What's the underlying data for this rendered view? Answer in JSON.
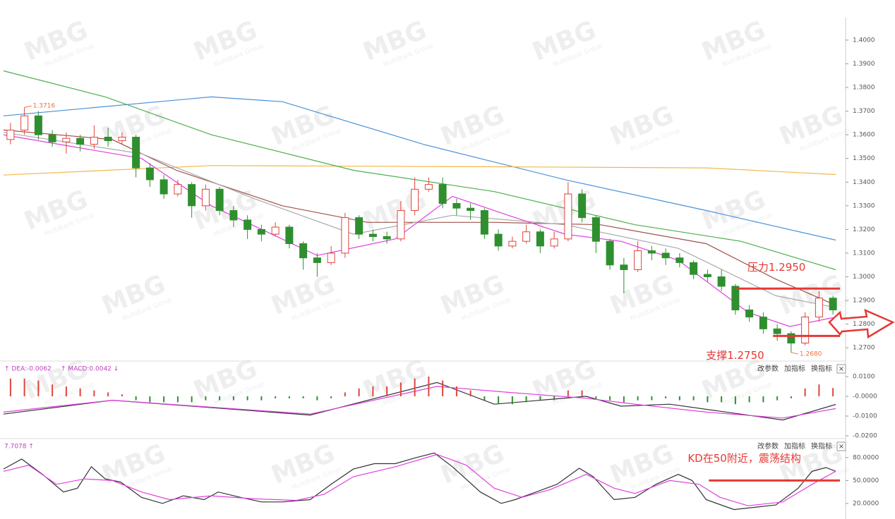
{
  "watermark": "MBG",
  "watermark_sub": "MultiBank Group",
  "toolbar": [
    "改参数",
    "加指标",
    "换指标",
    "×"
  ],
  "chart_data": [
    {
      "type": "candlestick",
      "xlim": [
        -0.5,
        59.5
      ],
      "ylim": [
        1.265,
        1.4095
      ],
      "yticks": [
        {
          "value": 1.4,
          "label": "1.4000"
        },
        {
          "value": 1.39,
          "label": "1.3900"
        },
        {
          "value": 1.38,
          "label": "1.3800"
        },
        {
          "value": 1.37,
          "label": "1.3700"
        },
        {
          "value": 1.36,
          "label": "1.3600"
        },
        {
          "value": 1.35,
          "label": "1.3500"
        },
        {
          "value": 1.34,
          "label": "1.3400"
        },
        {
          "value": 1.33,
          "label": "1.3300"
        },
        {
          "value": 1.32,
          "label": "1.3200"
        },
        {
          "value": 1.31,
          "label": "1.3100"
        },
        {
          "value": 1.3,
          "label": "1.3000"
        },
        {
          "value": 1.29,
          "label": "1.2900"
        },
        {
          "value": 1.28,
          "label": "1.2800"
        },
        {
          "value": 1.27,
          "label": "1.2700"
        }
      ],
      "up_color": "#e0443c",
      "down_color": "#2f8f2f",
      "open": [
        1.358,
        1.362,
        1.368,
        1.36,
        1.357,
        1.3585,
        1.356,
        1.359,
        1.3575,
        1.359,
        1.346,
        1.341,
        1.335,
        1.339,
        1.33,
        1.337,
        1.328,
        1.324,
        1.32,
        1.318,
        1.321,
        1.314,
        1.308,
        1.306,
        1.31,
        1.325,
        1.318,
        1.317,
        1.316,
        1.328,
        1.337,
        1.339,
        1.331,
        1.329,
        1.328,
        1.318,
        1.313,
        1.315,
        1.319,
        1.313,
        1.316,
        1.335,
        1.325,
        1.315,
        1.305,
        1.303,
        1.311,
        1.31,
        1.308,
        1.306,
        1.301,
        1.3,
        1.296,
        1.286,
        1.283,
        1.278,
        1.276,
        1.272,
        1.283,
        1.291
      ],
      "high": [
        1.365,
        1.3716,
        1.37,
        1.362,
        1.361,
        1.36,
        1.364,
        1.363,
        1.361,
        1.36,
        1.348,
        1.343,
        1.341,
        1.34,
        1.339,
        1.338,
        1.33,
        1.326,
        1.322,
        1.323,
        1.322,
        1.315,
        1.31,
        1.313,
        1.327,
        1.326,
        1.32,
        1.319,
        1.332,
        1.342,
        1.342,
        1.342,
        1.333,
        1.331,
        1.329,
        1.32,
        1.317,
        1.322,
        1.32,
        1.319,
        1.34,
        1.337,
        1.326,
        1.316,
        1.308,
        1.315,
        1.313,
        1.312,
        1.31,
        1.307,
        1.303,
        1.303,
        1.297,
        1.288,
        1.285,
        1.28,
        1.277,
        1.285,
        1.294,
        1.292
      ],
      "low": [
        1.356,
        1.36,
        1.358,
        1.355,
        1.352,
        1.353,
        1.354,
        1.355,
        1.356,
        1.342,
        1.338,
        1.333,
        1.334,
        1.325,
        1.328,
        1.326,
        1.321,
        1.316,
        1.315,
        1.317,
        1.312,
        1.303,
        1.3,
        1.305,
        1.308,
        1.316,
        1.315,
        1.314,
        1.315,
        1.326,
        1.336,
        1.329,
        1.326,
        1.324,
        1.316,
        1.311,
        1.312,
        1.314,
        1.31,
        1.312,
        1.315,
        1.323,
        1.31,
        1.303,
        1.293,
        1.302,
        1.307,
        1.305,
        1.304,
        1.299,
        1.298,
        1.294,
        1.284,
        1.281,
        1.276,
        1.273,
        1.268,
        1.271,
        1.281,
        1.284
      ],
      "close": [
        1.362,
        1.368,
        1.36,
        1.357,
        1.3585,
        1.356,
        1.359,
        1.3575,
        1.359,
        1.346,
        1.341,
        1.335,
        1.339,
        1.33,
        1.337,
        1.328,
        1.324,
        1.32,
        1.318,
        1.321,
        1.314,
        1.308,
        1.306,
        1.31,
        1.325,
        1.318,
        1.317,
        1.316,
        1.328,
        1.337,
        1.339,
        1.331,
        1.329,
        1.328,
        1.318,
        1.313,
        1.315,
        1.319,
        1.313,
        1.316,
        1.335,
        1.325,
        1.315,
        1.305,
        1.303,
        1.311,
        1.31,
        1.308,
        1.306,
        1.301,
        1.3,
        1.296,
        1.286,
        1.283,
        1.278,
        1.276,
        1.272,
        1.283,
        1.291,
        1.286
      ],
      "series": [
        {
          "color": "#4a90d9",
          "x": [
            -0.5,
            14.4,
            19.5,
            29.6,
            39.8,
            49.9,
            59.2
          ],
          "values": [
            1.368,
            1.376,
            1.374,
            1.356,
            1.341,
            1.328,
            1.3155
          ]
        },
        {
          "color": "#f0b94a",
          "x": [
            -0.5,
            14.4,
            34.7,
            49.9,
            59.2
          ],
          "values": [
            1.343,
            1.347,
            1.3465,
            1.346,
            1.3432
          ]
        },
        {
          "color": "#4caf50",
          "x": [
            -0.5,
            6.8,
            14.4,
            24.6,
            34.7,
            44.8,
            52.4,
            59.2
          ],
          "values": [
            1.387,
            1.376,
            1.36,
            1.345,
            1.336,
            1.322,
            1.315,
            1.303
          ]
        },
        {
          "color": "#a0524a",
          "x": [
            -0.5,
            7.3,
            11.9,
            19.5,
            25.6,
            34.7,
            42.3,
            49.9,
            54.9,
            59.2
          ],
          "values": [
            1.362,
            1.358,
            1.345,
            1.33,
            1.323,
            1.323,
            1.322,
            1.314,
            1.299,
            1.288
          ]
        },
        {
          "color": "#aaaaaa",
          "x": [
            -0.5,
            9.4,
            17.5,
            24.6,
            31.7,
            39.8,
            47.9,
            54.9,
            59.2
          ],
          "values": [
            1.361,
            1.352,
            1.333,
            1.318,
            1.326,
            1.322,
            1.312,
            1.292,
            1.287
          ]
        },
        {
          "color": "#e040e0",
          "x": [
            -0.5,
            9.4,
            14.4,
            22.0,
            27.6,
            31.7,
            35.7,
            39.8,
            43.8,
            47.9,
            52.9,
            55.9,
            59.2
          ],
          "values": [
            1.36,
            1.35,
            1.33,
            1.309,
            1.316,
            1.334,
            1.326,
            1.318,
            1.315,
            1.307,
            1.285,
            1.279,
            1.283
          ]
        }
      ],
      "annotations": [
        {
          "text": "1.3716",
          "x": 1,
          "y": 1.3716
        },
        {
          "text": "1.2680",
          "x": 56,
          "y": 1.268
        }
      ],
      "levels": [
        {
          "text": "压力1.2950",
          "value": 1.295,
          "x": [
            52.1,
            59.5
          ],
          "color": "#e53935"
        },
        {
          "text": "支撑1.2750",
          "value": 1.275,
          "x": [
            54.7,
            59.5
          ],
          "color": "#e53935"
        }
      ]
    },
    {
      "type": "macd",
      "xlim": [
        -0.5,
        59.5
      ],
      "ylim": [
        -0.0207,
        0.0168
      ],
      "yticks": [
        {
          "value": 0.01,
          "label": "0.0100"
        },
        {
          "value": 0,
          "label": "-0.0000"
        },
        {
          "value": -0.01,
          "label": "-0.0100"
        },
        {
          "value": -0.02,
          "label": "-0.0200"
        }
      ],
      "header": [
        "↑ DEA:-0.0062",
        "↑ MACD:0.0042 ↓"
      ],
      "up_color": "#e0443c",
      "down_color": "#2f8f2f",
      "histogram": [
        0.009,
        0.009,
        0.008,
        0.006,
        0.005,
        0.004,
        0.003,
        0.002,
        0.001,
        -0.002,
        -0.003,
        -0.003,
        -0.003,
        -0.003,
        -0.002,
        -0.002,
        -0.002,
        -0.002,
        -0.002,
        -0.001,
        -0.001,
        -0.001,
        -0.002,
        -0.001,
        0.002,
        0.004,
        0.005,
        0.005,
        0.007,
        0.009,
        0.01,
        0.008,
        0.005,
        0.003,
        -0.002,
        -0.004,
        -0.004,
        -0.003,
        -0.002,
        -0.002,
        0.003,
        0.003,
        -0.001,
        -0.002,
        -0.003,
        -0.002,
        -0.002,
        -0.001,
        -0.002,
        -0.002,
        -0.003,
        -0.003,
        -0.004,
        -0.003,
        -0.003,
        -0.002,
        -0.001,
        0.004,
        0.006,
        0.0042
      ],
      "series": [
        {
          "color": "#333333",
          "x": [
            -0.5,
            7.3,
            21.5,
            30.6,
            34.7,
            41.3,
            43.8,
            47.3,
            55.4,
            59.2
          ],
          "values": [
            -0.009,
            -0.002,
            -0.0095,
            0.007,
            -0.004,
            0,
            -0.005,
            -0.004,
            -0.012,
            -0.0041
          ]
        },
        {
          "color": "#e040e0",
          "x": [
            -0.5,
            7.3,
            21.5,
            30.6,
            35.7,
            41.3,
            44.8,
            49.9,
            55.4,
            59.2
          ],
          "values": [
            -0.008,
            -0.002,
            -0.009,
            0.005,
            0.002,
            -0.001,
            -0.004,
            -0.008,
            -0.011,
            -0.0062
          ]
        }
      ]
    },
    {
      "type": "line",
      "xlim": [
        -0.5,
        59.5
      ],
      "ylim": [
        5.2,
        102
      ],
      "yticks": [
        {
          "value": 80,
          "label": "80.0000"
        },
        {
          "value": 50,
          "label": "50.0000"
        },
        {
          "value": 20,
          "label": "20.0000"
        }
      ],
      "header": [
        "7.7078 ↑"
      ],
      "series": [
        {
          "color": "#333333",
          "x": [
            -0.5,
            0.8,
            2.3,
            3.8,
            4.8,
            5.8,
            6.8,
            7.9,
            9.4,
            10.9,
            12.4,
            13.9,
            14.9,
            16.5,
            18.0,
            19.5,
            21.5,
            23.0,
            24.6,
            26.1,
            27.6,
            29.1,
            30.4,
            31.7,
            33.7,
            35.2,
            36.2,
            37.7,
            39.2,
            40.8,
            41.8,
            43.3,
            44.8,
            46.3,
            47.9,
            48.9,
            49.9,
            51.9,
            53.4,
            54.9,
            56.5,
            57.5,
            58.5,
            59.2
          ],
          "values": [
            65,
            78,
            58,
            35,
            40,
            68,
            52,
            48,
            28,
            20,
            30,
            25,
            35,
            28,
            22,
            22,
            25,
            45,
            65,
            72,
            72,
            80,
            86,
            68,
            35,
            20,
            25,
            35,
            45,
            66,
            55,
            25,
            28,
            45,
            58,
            50,
            25,
            12,
            15,
            18,
            40,
            62,
            67,
            62
          ]
        },
        {
          "color": "#e040e0",
          "x": [
            -0.5,
            1.3,
            3.3,
            5.3,
            7.3,
            9.4,
            11.4,
            14.4,
            17.5,
            20.5,
            22.5,
            24.6,
            27.6,
            30.6,
            32.7,
            34.7,
            36.7,
            38.7,
            41.3,
            43.3,
            44.8,
            47.3,
            49.4,
            50.9,
            52.9,
            55.4,
            57.5,
            59.2
          ],
          "values": [
            62,
            70,
            45,
            52,
            50,
            35,
            25,
            30,
            26,
            24,
            32,
            55,
            68,
            84,
            70,
            40,
            28,
            38,
            58,
            40,
            33,
            50,
            45,
            28,
            17,
            22,
            45,
            62
          ]
        }
      ],
      "levels": [
        {
          "text": "KD在50附近，震荡结构",
          "value": 50,
          "x": [
            50.1,
            59.5
          ],
          "color": "#e53935"
        }
      ]
    }
  ]
}
